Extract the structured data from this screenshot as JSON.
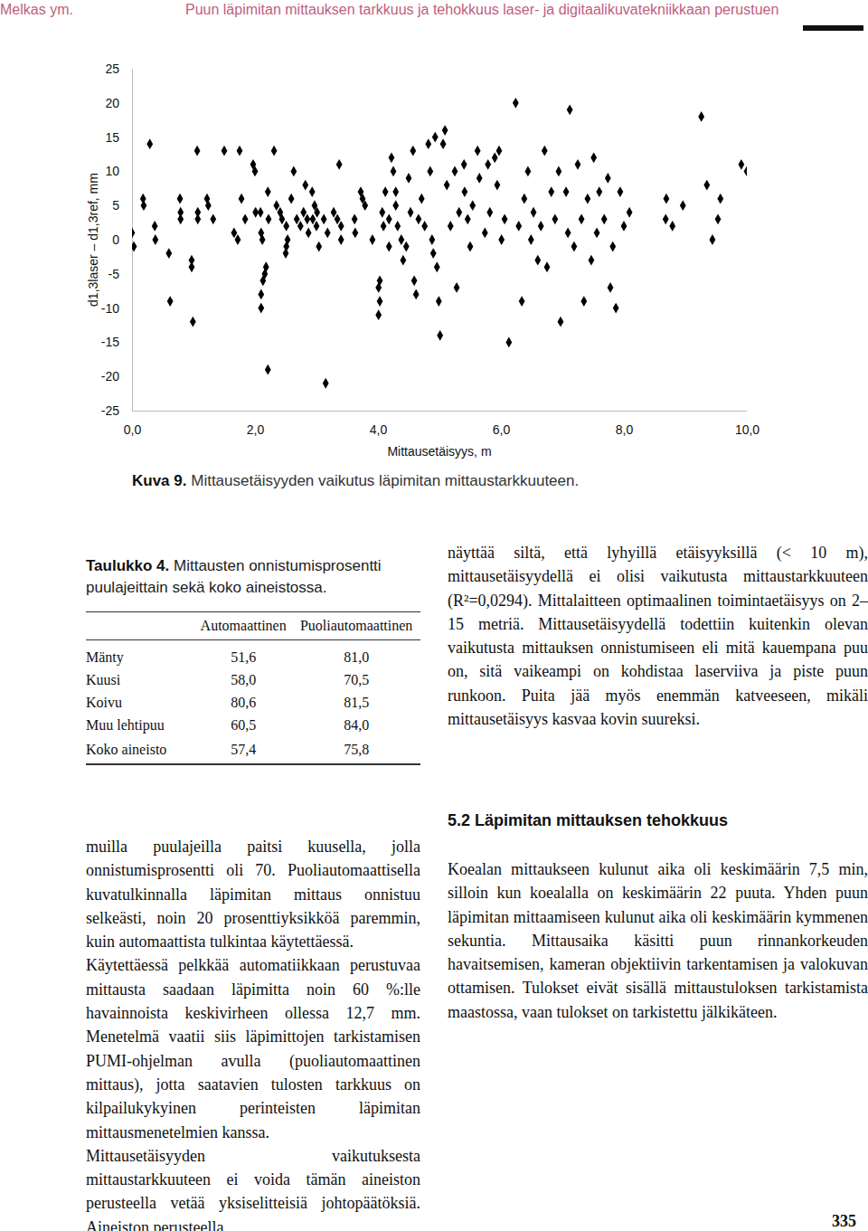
{
  "header": {
    "author": "Melkas ym.",
    "title": "Puun läpimitan mittauksen tarkkuus ja tehokkuus laser- ja digitaalikuvatekniikkaan perustuen"
  },
  "chart_data": {
    "type": "scatter",
    "xlabel": "Mittausetäisyys, m",
    "ylabel": "d1,3laser – d1,3ref, mm",
    "color": "#000000",
    "marker": "diamond",
    "grid": false,
    "xlim": [
      0,
      10
    ],
    "ylim": [
      -25,
      25
    ],
    "xticks": [
      {
        "value": 0,
        "label": "0,0"
      },
      {
        "value": 2,
        "label": "2,0"
      },
      {
        "value": 4,
        "label": "4,0"
      },
      {
        "value": 6,
        "label": "6,0"
      },
      {
        "value": 8,
        "label": "8,0"
      },
      {
        "value": 10,
        "label": "10,0"
      }
    ],
    "yticks": [
      -25,
      -20,
      -15,
      -10,
      -5,
      0,
      5,
      10,
      15,
      20,
      25
    ],
    "x": [
      0.0,
      0.03,
      0.18,
      0.19,
      0.29,
      0.37,
      0.38,
      0.62,
      0.6,
      0.78,
      0.79,
      0.79,
      0.97,
      0.97,
      0.99,
      1.06,
      1.07,
      1.07,
      1.22,
      1.24,
      1.32,
      1.5,
      1.66,
      1.72,
      1.75,
      1.78,
      1.84,
      1.97,
      2.0,
      2.01,
      2.09,
      2.1,
      2.12,
      2.13,
      2.1,
      2.16,
      2.18,
      2.1,
      2.21,
      2.21,
      2.22,
      2.35,
      2.41,
      2.44,
      2.31,
      2.51,
      2.53,
      2.51,
      2.5,
      2.59,
      2.63,
      2.68,
      2.74,
      2.79,
      2.82,
      2.85,
      2.87,
      2.93,
      2.94,
      2.97,
      3.01,
      3.0,
      3.04,
      3.12,
      3.18,
      3.15,
      3.28,
      3.34,
      3.37,
      3.4,
      3.4,
      3.62,
      3.63,
      3.72,
      3.75,
      3.79,
      3.91,
      4.01,
      4.03,
      4.01,
      4.03,
      4.07,
      4.09,
      4.12,
      4.18,
      4.18,
      4.22,
      4.25,
      4.29,
      4.29,
      4.32,
      4.38,
      4.46,
      4.41,
      4.5,
      4.53,
      4.57,
      4.59,
      4.62,
      4.66,
      4.71,
      4.76,
      4.82,
      4.85,
      4.88,
      4.9,
      4.93,
      4.96,
      4.99,
      5.01,
      5.06,
      5.09,
      5.12,
      5.18,
      5.25,
      5.28,
      5.32,
      5.4,
      5.41,
      5.46,
      5.5,
      5.54,
      5.62,
      5.65,
      5.74,
      5.79,
      5.82,
      5.9,
      5.94,
      5.97,
      6.01,
      6.06,
      6.13,
      6.24,
      6.29,
      6.34,
      6.38,
      6.44,
      6.49,
      6.53,
      6.6,
      6.65,
      6.71,
      6.75,
      6.82,
      6.88,
      6.94,
      6.97,
      7.06,
      7.09,
      7.12,
      7.19,
      7.25,
      7.31,
      7.35,
      7.41,
      7.47,
      7.51,
      7.56,
      7.6,
      7.68,
      7.74,
      7.78,
      7.82,
      7.87,
      7.94,
      8.0,
      8.09,
      8.69,
      8.68,
      8.79,
      8.96,
      9.26,
      9.35,
      9.44,
      9.53,
      9.57,
      9.91,
      10.0
    ],
    "values": [
      1,
      -1,
      6,
      5,
      14,
      2,
      0,
      -9,
      -2,
      6,
      4,
      3,
      -3,
      -4,
      -12,
      13,
      4,
      3,
      6,
      5,
      3,
      13,
      1,
      0,
      13,
      6,
      3,
      11,
      10,
      4,
      4,
      1,
      0,
      -6,
      -8,
      -5,
      -4,
      -10,
      -19,
      7,
      3,
      5,
      4,
      3,
      13,
      2,
      0,
      -1,
      -2,
      6,
      10,
      3,
      2,
      4,
      8,
      3,
      1,
      7,
      3,
      5,
      4,
      2,
      -1,
      3,
      1,
      -21,
      4,
      3,
      11,
      2,
      0,
      3,
      1,
      7,
      6,
      5,
      0,
      -11,
      -9,
      -7,
      -6,
      4,
      2,
      7,
      3,
      -1,
      12,
      10,
      7,
      5,
      2,
      0,
      -1,
      -3,
      9,
      4,
      13,
      -6,
      -8,
      3,
      6,
      2,
      14,
      10,
      0,
      -2,
      15,
      -4,
      -9,
      -14,
      14,
      16,
      8,
      2,
      10,
      -7,
      4,
      11,
      7,
      3,
      -1,
      5,
      13,
      9,
      1,
      11,
      4,
      12,
      8,
      13,
      0,
      3,
      -15,
      20,
      2,
      -9,
      6,
      10,
      0,
      4,
      -3,
      2,
      13,
      -4,
      7,
      3,
      10,
      -12,
      7,
      1,
      19,
      -1,
      11,
      3,
      -9,
      6,
      -3,
      12,
      1,
      7,
      3,
      9,
      -7,
      -1,
      -10,
      7,
      2,
      4,
      6,
      3,
      2,
      5,
      18,
      8,
      0,
      3,
      6,
      11,
      10
    ]
  },
  "figure_caption": {
    "label": "Kuva 9.",
    "text": "Mittausetäisyyden vaikutus läpimitan mittaustarkkuuteen."
  },
  "table": {
    "label": "Taulukko 4.",
    "title": "Mittausten onnistumisprosentti puulajeittain sekä koko aineistossa.",
    "columns": [
      "Automaattinen",
      "Puoliautomaattinen"
    ],
    "rows": [
      [
        "Mänty",
        "51,6",
        "81,0"
      ],
      [
        "Kuusi",
        "58,0",
        "70,5"
      ],
      [
        "Koivu",
        "80,6",
        "81,5"
      ],
      [
        "Muu lehtipuu",
        "60,5",
        "84,0"
      ],
      [
        "Koko aineisto",
        "57,4",
        "75,8"
      ]
    ]
  },
  "body": {
    "left": [
      "muilla puulajeilla paitsi kuusella, jolla onnistumisprosentti oli 70. Puoliautomaattisella kuvatulkinnalla läpimitan mittaus onnistuu selkeästi, noin 20 prosenttiyksikköä paremmin, kuin automaattista tulkintaa käytettäessä.",
      "Käytettäessä pelkkää automatiikkaan perustuvaa mittausta saadaan läpimitta noin 60 %:lle havainnoista keskivirheen ollessa 12,7 mm. Menetelmä vaatii siis läpimittojen tarkistamisen PUMI-ohjelman avulla (puoliautomaattinen mittaus), jotta saatavien tulosten tarkkuus on kilpailukykyinen perinteisten läpimitan mittausmenetelmien kanssa.",
      "Mittausetäisyyden vaikutuksesta mittaustarkkuuteen ei voida tämän aineiston perusteella vetää yksiselitteisiä johtopäätöksiä. Aineiston perusteella"
    ],
    "right_top": [
      "näyttää siltä, että lyhyillä etäisyyksillä (< 10 m), mittausetäisyydellä ei olisi vaikutusta mittaustarkkuuteen (R²=0,0294). Mittalaitteen optimaalinen toimintaetäisyys on 2–15 metriä. Mittausetäisyydellä todettiin kuitenkin olevan vaikutusta mittauksen onnistumiseen eli mitä kauempana puu on, sitä vaikeampi on kohdistaa laserviiva ja piste puun runkoon. Puita jää myös enemmän katveeseen, mikäli mittausetäisyys kasvaa kovin suureksi."
    ],
    "section": {
      "heading": "5.2 Läpimitan mittauksen tehokkuus",
      "paragraphs": [
        "Koealan mittaukseen kulunut aika oli keskimäärin 7,5 min, silloin kun koealalla on keskimäärin 22 puuta. Yhden puun läpimitan mittaamiseen kulunut aika oli keskimäärin kymmenen sekuntia. Mittausaika käsitti puun rinnankorkeuden havaitsemisen, kameran objektiivin tarkentamisen ja valokuvan ottamisen. Tulokset eivät sisällä mittaustuloksen tarkistamista maastossa, vaan tulokset on tarkistettu jälkikäteen."
      ]
    }
  },
  "page_number": "335"
}
